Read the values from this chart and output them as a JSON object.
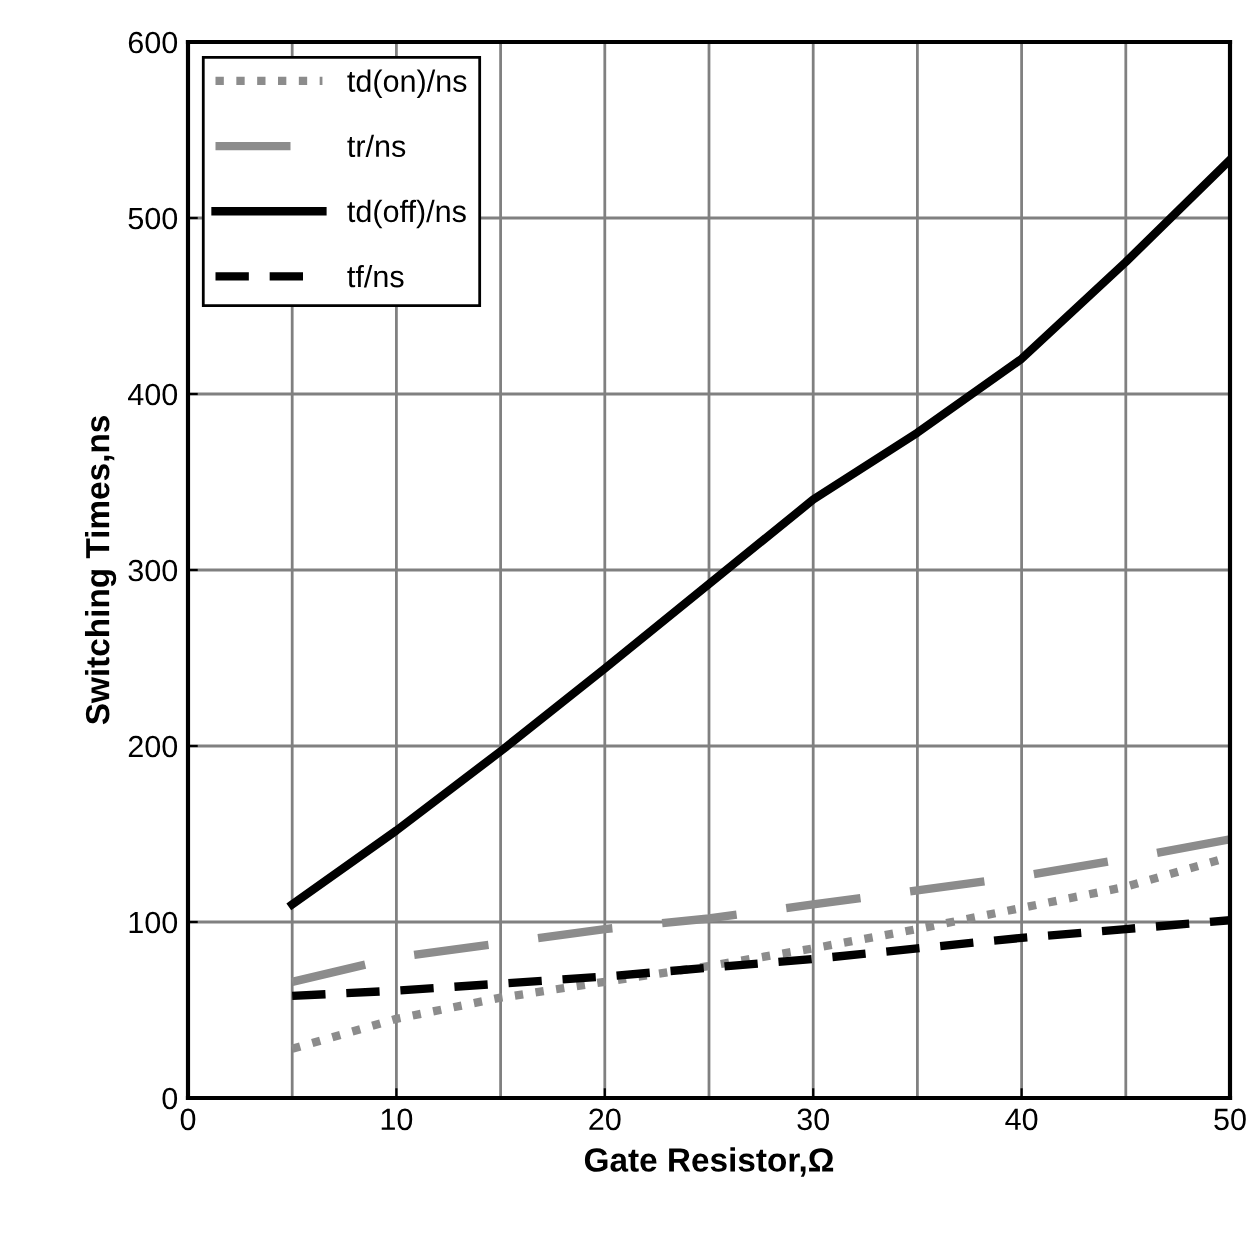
{
  "chart_data": {
    "type": "line",
    "xlabel": "Gate Resistor,Ω",
    "ylabel": "Switching Times,ns",
    "x": [
      5,
      10,
      15,
      20,
      25,
      30,
      35,
      40,
      45,
      50
    ],
    "series": [
      {
        "name": "td(on)/ns",
        "color": "#8c8c8c",
        "line_style": "dotted",
        "values": [
          28,
          45,
          57,
          66,
          75,
          85,
          96,
          108,
          120,
          137
        ]
      },
      {
        "name": "tr/ns",
        "color": "#8c8c8c",
        "line_style": "dashed",
        "values": [
          66,
          80,
          88,
          96,
          102,
          110,
          118,
          126,
          136,
          147
        ]
      },
      {
        "name": "td(off)/ns",
        "color": "#000000",
        "line_style": "solid",
        "values": [
          110,
          152,
          197,
          244,
          292,
          340,
          378,
          420,
          475,
          533
        ]
      },
      {
        "name": "tf/ns",
        "color": "#000000",
        "line_style": "dashed",
        "values": [
          58,
          61,
          65,
          69,
          74,
          79,
          85,
          91,
          96,
          101
        ]
      }
    ],
    "xlim": [
      0,
      50
    ],
    "ylim": [
      0,
      600
    ],
    "xticks": [
      0,
      10,
      20,
      30,
      40,
      50
    ],
    "yticks": [
      0,
      100,
      200,
      300,
      400,
      500,
      600
    ],
    "grid": true,
    "legend": "top left",
    "marker": "none"
  }
}
